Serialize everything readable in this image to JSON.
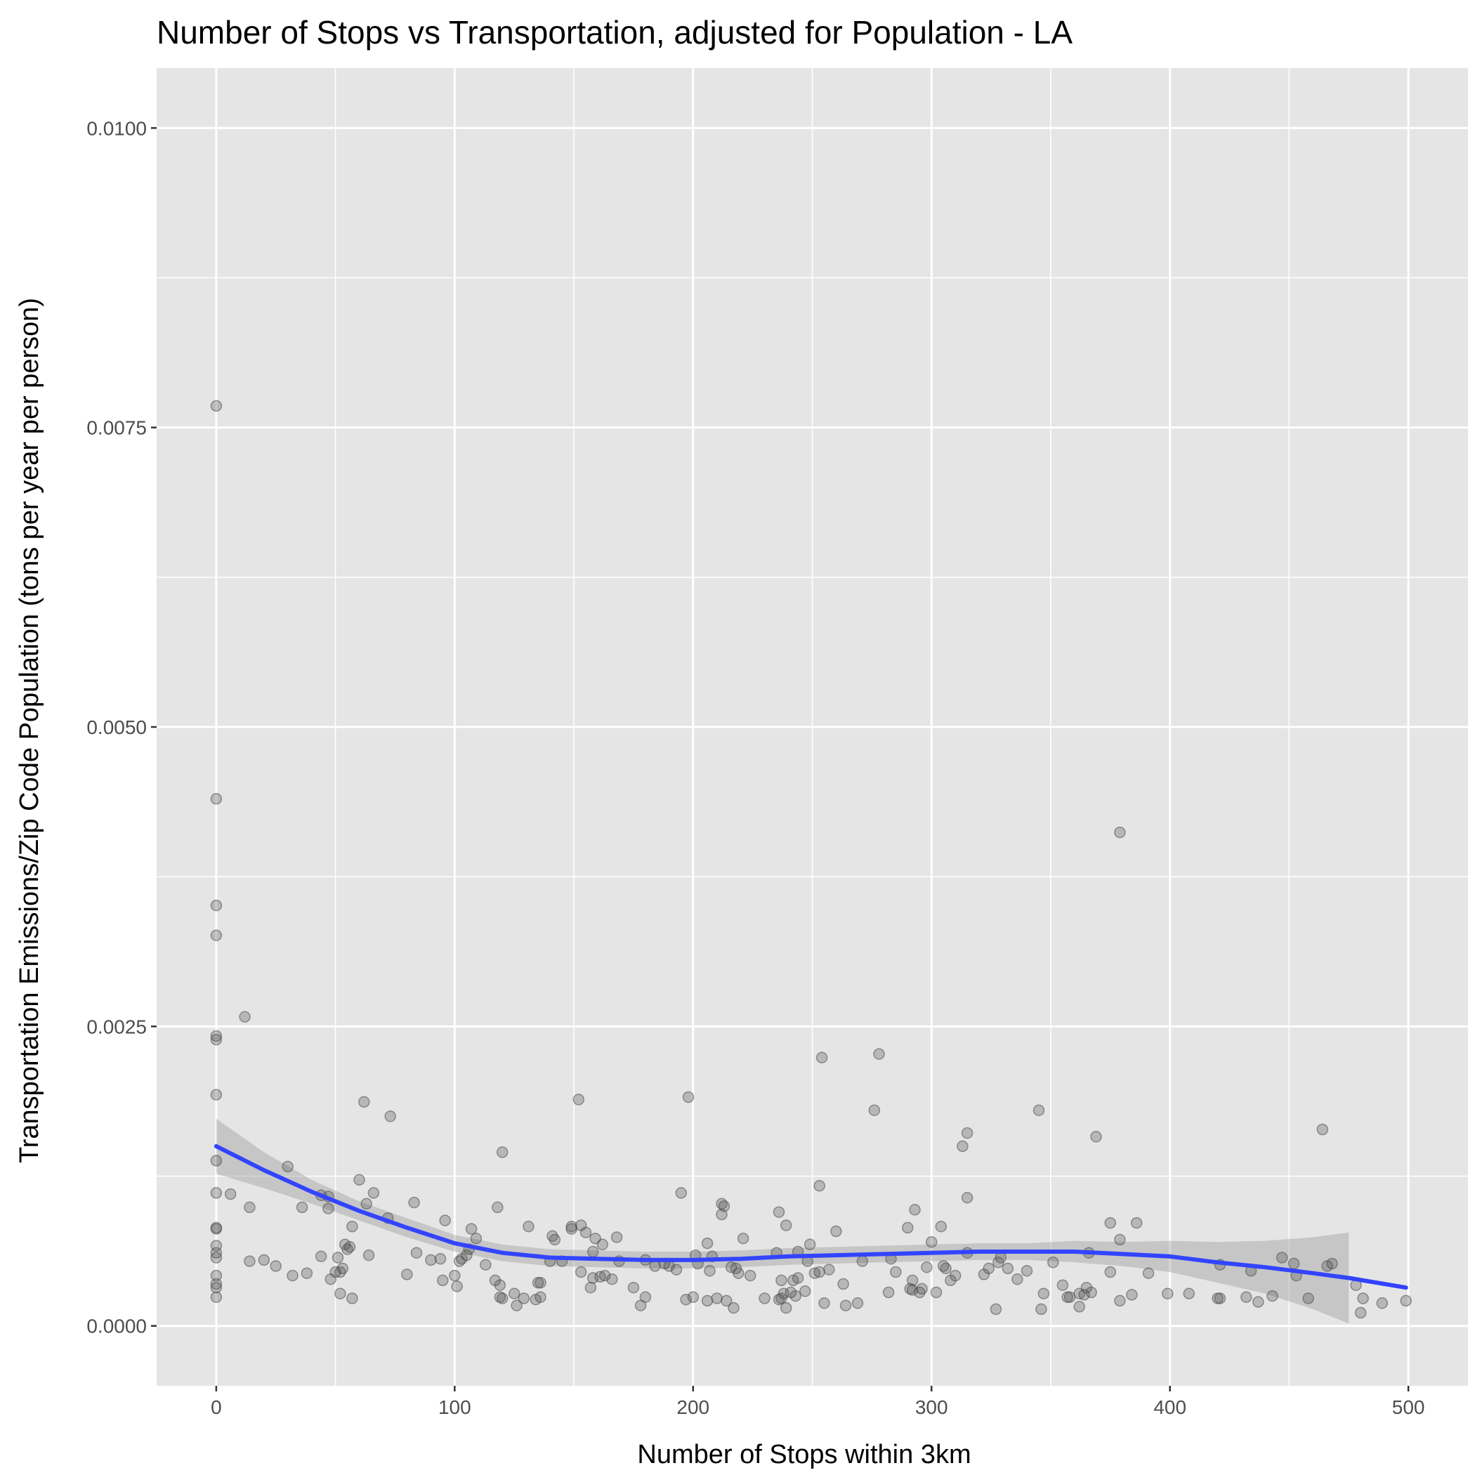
{
  "chart_data": {
    "type": "scatter",
    "title": "Number of Stops vs Transportation, adjusted for Population - LA",
    "xlabel": "Number of Stops within 3km",
    "ylabel": "Transportation Emissions/Zip Code Population (tons per year per person)",
    "xlim": [
      -25,
      525
    ],
    "ylim": [
      -0.0005,
      0.0105
    ],
    "x_ticks": [
      0,
      100,
      200,
      300,
      400,
      500
    ],
    "x_tick_labels": [
      "0",
      "100",
      "200",
      "300",
      "400",
      "500"
    ],
    "y_ticks": [
      0,
      0.0025,
      0.005,
      0.0075,
      0.01
    ],
    "y_tick_labels": [
      "0.0000",
      "0.0025",
      "0.0050",
      "0.0075",
      "0.0100"
    ],
    "grid": true,
    "background": "#e5e5e5",
    "grid_color": "#ffffff",
    "point_color": "#4d4d4d",
    "smooth_color": "#3344ff",
    "ribbon_color": "#999999",
    "points": [
      [
        0,
        0.00768
      ],
      [
        0,
        0.0044
      ],
      [
        0,
        0.00351
      ],
      [
        0,
        0.00326
      ],
      [
        0,
        0.00242
      ],
      [
        0,
        0.00239
      ],
      [
        0,
        0.00193
      ],
      [
        0,
        0.00138
      ],
      [
        0,
        0.00111
      ],
      [
        0,
        0.00082
      ],
      [
        0,
        0.00081
      ],
      [
        0,
        0.00067
      ],
      [
        0,
        0.00061
      ],
      [
        0,
        0.00057
      ],
      [
        0,
        0.00042
      ],
      [
        0,
        0.00035
      ],
      [
        0,
        0.00032
      ],
      [
        0,
        0.00024
      ],
      [
        6,
        0.0011
      ],
      [
        12,
        0.00258
      ],
      [
        14,
        0.00099
      ],
      [
        14,
        0.00054
      ],
      [
        20,
        0.00055
      ],
      [
        25,
        0.0005
      ],
      [
        30,
        0.00133
      ],
      [
        32,
        0.00042
      ],
      [
        36,
        0.00099
      ],
      [
        38,
        0.00044
      ],
      [
        44,
        0.00109
      ],
      [
        44,
        0.00058
      ],
      [
        47,
        0.00098
      ],
      [
        47,
        0.00108
      ],
      [
        48,
        0.00039
      ],
      [
        50,
        0.00045
      ],
      [
        51,
        0.00057
      ],
      [
        52,
        0.00027
      ],
      [
        52,
        0.00045
      ],
      [
        53,
        0.00048
      ],
      [
        54,
        0.00068
      ],
      [
        55,
        0.00064
      ],
      [
        56,
        0.00066
      ],
      [
        57,
        0.00023
      ],
      [
        57,
        0.00083
      ],
      [
        60,
        0.00122
      ],
      [
        62,
        0.00187
      ],
      [
        63,
        0.00102
      ],
      [
        64,
        0.00059
      ],
      [
        66,
        0.00111
      ],
      [
        72,
        0.0009
      ],
      [
        73,
        0.00175
      ],
      [
        80,
        0.00043
      ],
      [
        83,
        0.00103
      ],
      [
        84,
        0.00061
      ],
      [
        90,
        0.00055
      ],
      [
        94,
        0.00056
      ],
      [
        96,
        0.00088
      ],
      [
        95,
        0.00038
      ],
      [
        100,
        0.00042
      ],
      [
        101,
        0.00033
      ],
      [
        102,
        0.00054
      ],
      [
        103,
        0.00056
      ],
      [
        105,
        0.00059
      ],
      [
        106,
        0.00064
      ],
      [
        107,
        0.00081
      ],
      [
        109,
        0.00073
      ],
      [
        113,
        0.00051
      ],
      [
        117,
        0.00038
      ],
      [
        118,
        0.00099
      ],
      [
        119,
        0.00034
      ],
      [
        119,
        0.00024
      ],
      [
        120,
        0.00145
      ],
      [
        120,
        0.00023
      ],
      [
        125,
        0.00027
      ],
      [
        126,
        0.00017
      ],
      [
        129,
        0.00023
      ],
      [
        131,
        0.00083
      ],
      [
        134,
        0.00022
      ],
      [
        135,
        0.00036
      ],
      [
        136,
        0.00036
      ],
      [
        136,
        0.00024
      ],
      [
        140,
        0.00054
      ],
      [
        141,
        0.00075
      ],
      [
        142,
        0.00072
      ],
      [
        145,
        0.00054
      ],
      [
        149,
        0.00081
      ],
      [
        149,
        0.00083
      ],
      [
        152,
        0.00189
      ],
      [
        153,
        0.00084
      ],
      [
        153,
        0.00045
      ],
      [
        155,
        0.00078
      ],
      [
        157,
        0.00032
      ],
      [
        158,
        0.0004
      ],
      [
        158,
        0.00062
      ],
      [
        159,
        0.00073
      ],
      [
        161,
        0.00041
      ],
      [
        162,
        0.00068
      ],
      [
        163,
        0.00042
      ],
      [
        166,
        0.00039
      ],
      [
        168,
        0.00074
      ],
      [
        169,
        0.00054
      ],
      [
        175,
        0.00032
      ],
      [
        178,
        0.00017
      ],
      [
        180,
        0.00024
      ],
      [
        180,
        0.00055
      ],
      [
        184,
        0.0005
      ],
      [
        188,
        0.00052
      ],
      [
        190,
        0.0005
      ],
      [
        193,
        0.00047
      ],
      [
        195,
        0.00111
      ],
      [
        197,
        0.00022
      ],
      [
        198,
        0.00191
      ],
      [
        200,
        0.00024
      ],
      [
        201,
        0.00059
      ],
      [
        202,
        0.00052
      ],
      [
        206,
        0.00021
      ],
      [
        206,
        0.00069
      ],
      [
        207,
        0.00046
      ],
      [
        208,
        0.00058
      ],
      [
        210,
        0.00023
      ],
      [
        212,
        0.00102
      ],
      [
        212,
        0.00093
      ],
      [
        213,
        0.001
      ],
      [
        214,
        0.00021
      ],
      [
        216,
        0.00049
      ],
      [
        217,
        0.00015
      ],
      [
        218,
        0.00048
      ],
      [
        219,
        0.00044
      ],
      [
        221,
        0.00073
      ],
      [
        224,
        0.00042
      ],
      [
        230,
        0.00023
      ],
      [
        235,
        0.00061
      ],
      [
        236,
        0.00022
      ],
      [
        236,
        0.00095
      ],
      [
        237,
        0.00023
      ],
      [
        237,
        0.00038
      ],
      [
        238,
        0.00027
      ],
      [
        239,
        0.00015
      ],
      [
        239,
        0.00084
      ],
      [
        241,
        0.00028
      ],
      [
        242,
        0.00038
      ],
      [
        243,
        0.00025
      ],
      [
        244,
        0.00062
      ],
      [
        244,
        0.0004
      ],
      [
        247,
        0.00029
      ],
      [
        248,
        0.00054
      ],
      [
        249,
        0.00068
      ],
      [
        251,
        0.00044
      ],
      [
        253,
        0.00045
      ],
      [
        253,
        0.00117
      ],
      [
        254,
        0.00224
      ],
      [
        255,
        0.00019
      ],
      [
        257,
        0.00047
      ],
      [
        260,
        0.00079
      ],
      [
        263,
        0.00035
      ],
      [
        264,
        0.00017
      ],
      [
        269,
        0.00019
      ],
      [
        271,
        0.00054
      ],
      [
        276,
        0.0018
      ],
      [
        278,
        0.00227
      ],
      [
        282,
        0.00028
      ],
      [
        283,
        0.00056
      ],
      [
        285,
        0.00045
      ],
      [
        290,
        0.00082
      ],
      [
        291,
        0.00031
      ],
      [
        292,
        0.00038
      ],
      [
        292,
        0.0003
      ],
      [
        293,
        0.00097
      ],
      [
        295,
        0.00028
      ],
      [
        296,
        0.00031
      ],
      [
        298,
        0.00049
      ],
      [
        300,
        0.0007
      ],
      [
        302,
        0.00028
      ],
      [
        304,
        0.00083
      ],
      [
        305,
        0.0005
      ],
      [
        306,
        0.00048
      ],
      [
        308,
        0.00038
      ],
      [
        310,
        0.00042
      ],
      [
        313,
        0.0015
      ],
      [
        315,
        0.00161
      ],
      [
        315,
        0.00107
      ],
      [
        315,
        0.00061
      ],
      [
        322,
        0.00043
      ],
      [
        324,
        0.00048
      ],
      [
        327,
        0.00014
      ],
      [
        328,
        0.00053
      ],
      [
        329,
        0.00057
      ],
      [
        332,
        0.00048
      ],
      [
        336,
        0.00039
      ],
      [
        340,
        0.00046
      ],
      [
        345,
        0.0018
      ],
      [
        346,
        0.00014
      ],
      [
        347,
        0.00027
      ],
      [
        351,
        0.00053
      ],
      [
        355,
        0.00034
      ],
      [
        357,
        0.00024
      ],
      [
        358,
        0.00024
      ],
      [
        362,
        0.00016
      ],
      [
        362,
        0.00027
      ],
      [
        364,
        0.00026
      ],
      [
        365,
        0.00032
      ],
      [
        366,
        0.00061
      ],
      [
        367,
        0.00028
      ],
      [
        369,
        0.00158
      ],
      [
        375,
        0.00086
      ],
      [
        375,
        0.00045
      ],
      [
        379,
        0.00412
      ],
      [
        379,
        0.00072
      ],
      [
        379,
        0.00021
      ],
      [
        384,
        0.00026
      ],
      [
        386,
        0.00086
      ],
      [
        391,
        0.00044
      ],
      [
        399,
        0.00027
      ],
      [
        408,
        0.00027
      ],
      [
        420,
        0.00023
      ],
      [
        421,
        0.00051
      ],
      [
        421,
        0.00023
      ],
      [
        432,
        0.00024
      ],
      [
        434,
        0.00046
      ],
      [
        437,
        0.0002
      ],
      [
        443,
        0.00025
      ],
      [
        447,
        0.00057
      ],
      [
        452,
        0.00052
      ],
      [
        453,
        0.00042
      ],
      [
        458,
        0.00023
      ],
      [
        464,
        0.00164
      ],
      [
        466,
        0.0005
      ],
      [
        468,
        0.00052
      ],
      [
        478,
        0.00034
      ],
      [
        480,
        0.00011
      ],
      [
        481,
        0.00023
      ],
      [
        489,
        0.00019
      ],
      [
        499,
        0.00021
      ]
    ],
    "smooth": {
      "method": "loess",
      "x": [
        0,
        20,
        40,
        60,
        80,
        100,
        120,
        140,
        160,
        180,
        200,
        220,
        240,
        260,
        280,
        300,
        320,
        340,
        360,
        380,
        400,
        420,
        440,
        460,
        475,
        499
      ],
      "y": [
        0.0015,
        0.0013,
        0.00112,
        0.00096,
        0.00082,
        0.00069,
        0.00061,
        0.00057,
        0.00056,
        0.00055,
        0.00055,
        0.00056,
        0.00058,
        0.00059,
        0.0006,
        0.00061,
        0.00062,
        0.00062,
        0.00062,
        0.0006,
        0.00058,
        0.00053,
        0.00049,
        0.00044,
        0.0004,
        0.00032
      ],
      "lo": [
        0.00127,
        0.00115,
        0.00102,
        0.00088,
        0.00074,
        0.00062,
        0.00054,
        0.0005,
        0.00049,
        0.00048,
        0.00048,
        0.00049,
        0.00051,
        0.00052,
        0.00053,
        0.00054,
        0.00055,
        0.00055,
        0.00053,
        0.0005,
        0.00045,
        0.00036,
        0.00027,
        0.00014,
        2e-05,
        null
      ],
      "hi": [
        0.00173,
        0.00145,
        0.00122,
        0.00104,
        0.0009,
        0.00076,
        0.00068,
        0.00064,
        0.00063,
        0.00062,
        0.00062,
        0.00063,
        0.00065,
        0.00066,
        0.00067,
        0.00068,
        0.00069,
        0.00069,
        0.00071,
        0.0007,
        0.00071,
        0.0007,
        0.00071,
        0.00074,
        0.00078,
        null
      ]
    }
  }
}
